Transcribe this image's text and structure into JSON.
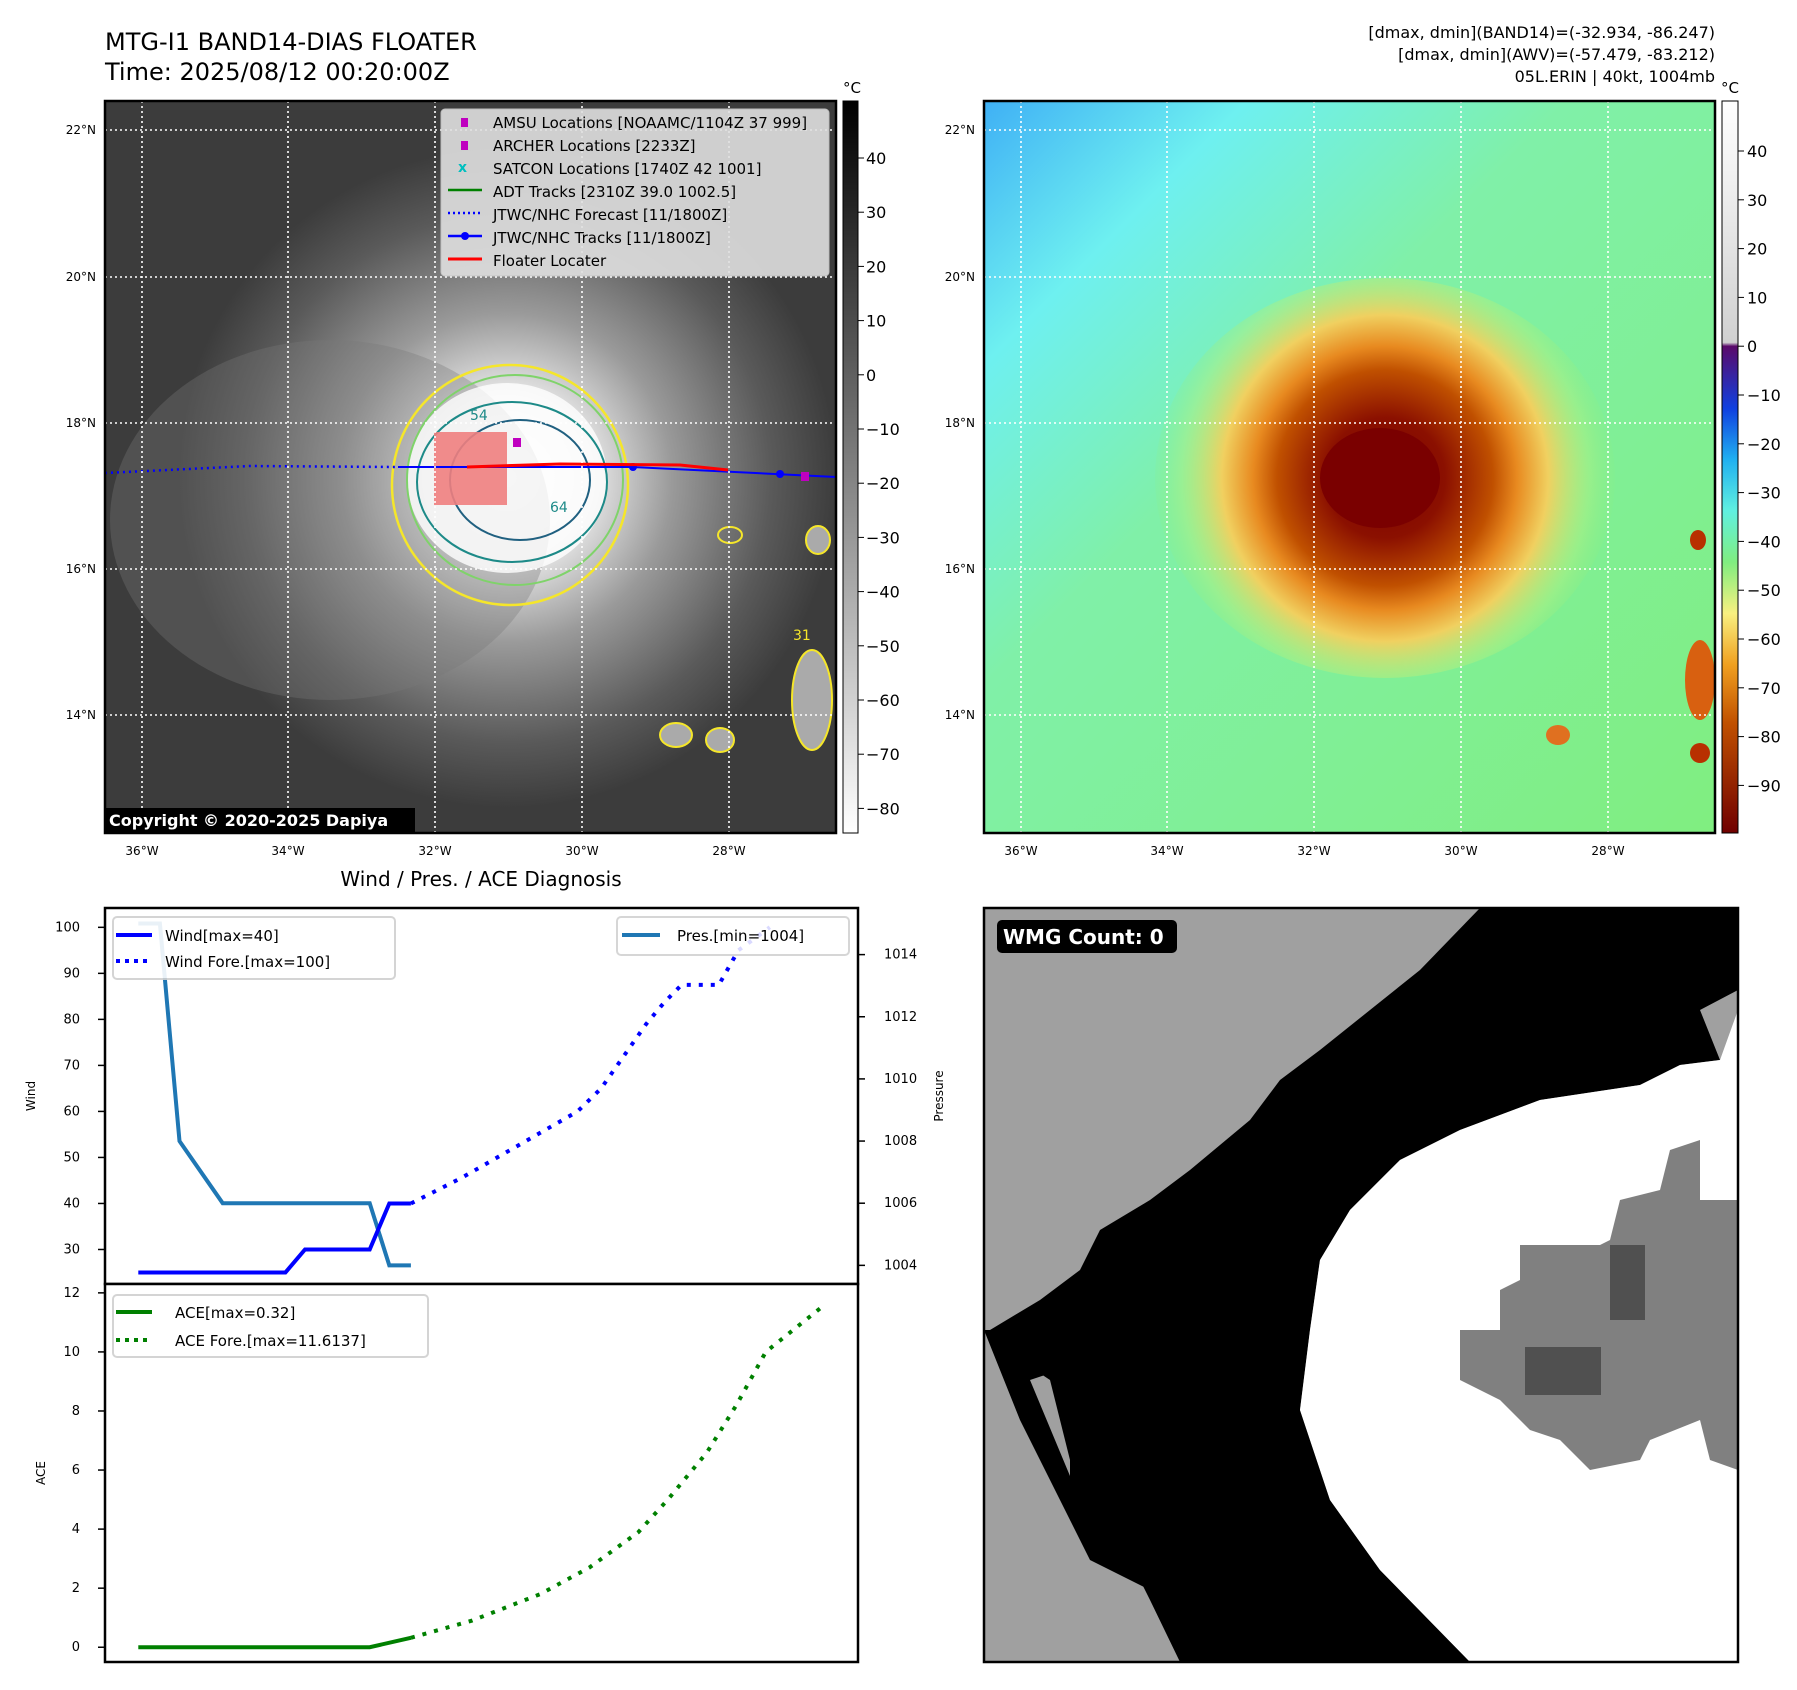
{
  "header": {
    "title": "MTG-I1 BAND14-DIAS FLOATER",
    "time": "Time: 2025/08/12 00:20:00Z",
    "stats_band14": "[dmax, dmin](BAND14)=(-32.934, -86.247)",
    "stats_awv": "[dmax, dmin](AWV)=(-57.479, -83.212)",
    "storm": "05L.ERIN | 40kt, 1004mb"
  },
  "maps": {
    "lat_labels": [
      "22°N",
      "20°N",
      "18°N",
      "16°N",
      "14°N"
    ],
    "lon_labels": [
      "36°W",
      "34°W",
      "32°W",
      "30°W",
      "28°W"
    ],
    "copyright": "Copyright © 2020-2025 Dapiya",
    "colorbar_unit": "°C",
    "colorbar1_ticks": [
      "40",
      "30",
      "20",
      "10",
      "0",
      "−10",
      "−20",
      "−30",
      "−40",
      "−50",
      "−60",
      "−70",
      "−80"
    ],
    "colorbar2_ticks": [
      "40",
      "30",
      "20",
      "10",
      "0",
      "−10",
      "−20",
      "−30",
      "−40",
      "−50",
      "−60",
      "−70",
      "−80",
      "−90"
    ],
    "contour_labels": [
      "54",
      "64",
      "31"
    ],
    "legend": [
      "AMSU Locations [NOAAMC/1104Z 37 999]",
      "ARCHER Locations [2233Z]",
      "SATCON Locations [1740Z 42 1001]",
      "ADT Tracks [2310Z 39.0 1002.5]",
      "JTWC/NHC Forecast [11/1800Z]",
      "JTWC/NHC Tracks [11/1800Z]",
      "Floater Locater"
    ],
    "colors": {
      "amsu": "#bf00bf",
      "archer": "#bf00bf",
      "satcon": "#00bfbf",
      "adt": "#008000",
      "forecast": "#0000ff",
      "tracks": "#0000ff",
      "floater": "#ff0000"
    }
  },
  "wmg": {
    "label": "WMG Count: 0"
  },
  "chart_data": [
    {
      "type": "line",
      "title": "Wind / Pres. / ACE Diagnosis",
      "ylabel": "Wind",
      "y2label": "Pressure",
      "ylim": [
        22.5,
        104.2
      ],
      "y2lim": [
        1003.4,
        1015.5
      ],
      "xlim": [
        -1.7,
        36.7
      ],
      "yticks": [
        "100",
        "90",
        "80",
        "70",
        "60",
        "50",
        "40",
        "30"
      ],
      "y2ticks": [
        "1014",
        "1012",
        "1010",
        "1008",
        "1006",
        "1004"
      ],
      "series": [
        {
          "name": "Wind[max=40]",
          "color": "#0000ff",
          "style": "solid",
          "axis": "left",
          "points": [
            [
              0,
              25
            ],
            [
              7.5,
              25
            ],
            [
              8.5,
              30
            ],
            [
              11.8,
              30
            ],
            [
              12.8,
              40
            ],
            [
              13.9,
              40
            ]
          ]
        },
        {
          "name": "Wind Fore.[max=100]",
          "color": "#0000ff",
          "style": "dotted",
          "axis": "left",
          "points": [
            [
              13.9,
              40
            ],
            [
              16.5,
              45.6
            ],
            [
              22.4,
              60
            ],
            [
              23.6,
              65
            ],
            [
              25.9,
              79
            ],
            [
              26.8,
              83.6
            ],
            [
              27.7,
              87.5
            ],
            [
              29.6,
              87.5
            ],
            [
              30.6,
              95
            ],
            [
              32.2,
              100
            ]
          ]
        },
        {
          "name": "Pres.[min=1004]",
          "color": "#1f77b4",
          "style": "solid",
          "axis": "right",
          "points": [
            [
              0,
              1015
            ],
            [
              1.1,
              1015
            ],
            [
              2.1,
              1008
            ],
            [
              4.3,
              1006
            ],
            [
              11.8,
              1006
            ],
            [
              12.8,
              1004
            ],
            [
              13.9,
              1004
            ]
          ]
        }
      ]
    },
    {
      "type": "line",
      "ylabel": "ACE",
      "ylim": [
        -0.5,
        12.3
      ],
      "xlim": [
        -1.7,
        36.7
      ],
      "yticks": [
        "12",
        "10",
        "8",
        "6",
        "4",
        "2",
        "0"
      ],
      "series": [
        {
          "name": "ACE[max=0.32]",
          "color": "#008000",
          "style": "solid",
          "points": [
            [
              0,
              0
            ],
            [
              11.8,
              0
            ],
            [
              13.9,
              0.32
            ]
          ]
        },
        {
          "name": "ACE Fore.[max=11.6137]",
          "color": "#008000",
          "style": "dotted",
          "points": [
            [
              13.9,
              0.32
            ],
            [
              17,
              0.9
            ],
            [
              20.5,
              1.8
            ],
            [
              23,
              2.7
            ],
            [
              25.5,
              3.9
            ],
            [
              27,
              5.0
            ],
            [
              29,
              6.6
            ],
            [
              30.5,
              8.2
            ],
            [
              32,
              10
            ],
            [
              35,
              11.6
            ]
          ]
        }
      ]
    }
  ]
}
